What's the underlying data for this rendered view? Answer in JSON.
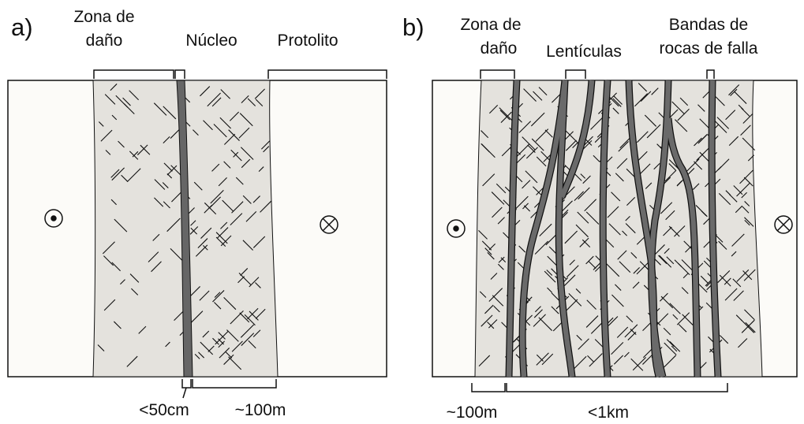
{
  "panel_a": {
    "label": "a)",
    "top_labels": [
      {
        "lines": [
          "Zona de",
          "daño"
        ]
      },
      {
        "lines": [
          "Núcleo"
        ]
      },
      {
        "lines": [
          "Protolito"
        ]
      }
    ],
    "bottom_labels": [
      "<50cm",
      "~100m"
    ]
  },
  "panel_b": {
    "label": "b)",
    "top_labels": [
      {
        "lines": [
          "Zona de",
          "daño"
        ]
      },
      {
        "lines": [
          "Lentículas"
        ]
      },
      {
        "lines": [
          "Bandas de",
          "rocas de falla"
        ]
      }
    ],
    "bottom_labels": [
      "~100m",
      "<1km"
    ]
  }
}
